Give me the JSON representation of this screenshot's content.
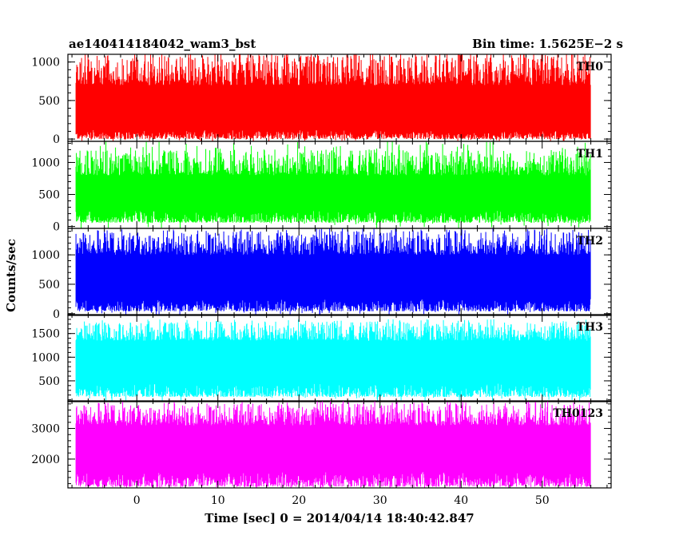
{
  "header": {
    "left_title": "ae140414184042_wam3_bst",
    "right_title": "Bin time: 1.5625E−2 s"
  },
  "chart_data": {
    "type": "line",
    "x_axis": {
      "label": "Time [sec] 0 = 2014/04/14 18:40:42.847",
      "range": [
        -8.5,
        58.5
      ],
      "data_range": [
        -7.5,
        56
      ],
      "major_ticks": [
        0,
        10,
        20,
        30,
        40,
        50
      ],
      "tick_labels": [
        "0",
        "10",
        "20",
        "30",
        "40",
        "50"
      ],
      "minor_step": 2
    },
    "y_label": "Counts/sec",
    "panels": [
      {
        "name": "TH0",
        "color": "#ff0000",
        "ylim": [
          -30,
          1100
        ],
        "ticks": [
          0,
          500,
          1000
        ],
        "tick_labels": [
          "0",
          "500",
          "1000"
        ],
        "minor_step": 100,
        "mean": 480,
        "low_band": [
          0,
          120
        ],
        "high_band": [
          700,
          1100
        ],
        "spike_max": 1100
      },
      {
        "name": "TH1",
        "color": "#00ff00",
        "ylim": [
          -30,
          1330
        ],
        "ticks": [
          0,
          500,
          1000
        ],
        "tick_labels": [
          "0",
          "500",
          "1000"
        ],
        "minor_step": 100,
        "mean": 520,
        "low_band": [
          60,
          250
        ],
        "high_band": [
          800,
          1200
        ],
        "spike_max": 1330
      },
      {
        "name": "TH2",
        "color": "#0000ff",
        "ylim": [
          -30,
          1450
        ],
        "ticks": [
          0,
          500,
          1000
        ],
        "tick_labels": [
          "0",
          "500",
          "1000"
        ],
        "minor_step": 100,
        "mean": 680,
        "low_band": [
          40,
          250
        ],
        "high_band": [
          1000,
          1400
        ],
        "spike_max": 1450
      },
      {
        "name": "TH3",
        "color": "#00ffff",
        "ylim": [
          60,
          1900
        ],
        "ticks": [
          500,
          1000,
          1500
        ],
        "tick_labels": [
          "500",
          "1000",
          "1500"
        ],
        "minor_step": 100,
        "mean": 870,
        "low_band": [
          160,
          450
        ],
        "high_band": [
          1350,
          1750
        ],
        "spike_max": 1800
      },
      {
        "name": "TH0123",
        "color": "#ff00ff",
        "ylim": [
          1060,
          3900
        ],
        "ticks": [
          2000,
          3000
        ],
        "tick_labels": [
          "2000",
          "3000"
        ],
        "minor_step": 200,
        "mean": 2300,
        "low_band": [
          1100,
          1600
        ],
        "high_band": [
          3100,
          3800
        ],
        "spike_max": 3900
      }
    ]
  }
}
